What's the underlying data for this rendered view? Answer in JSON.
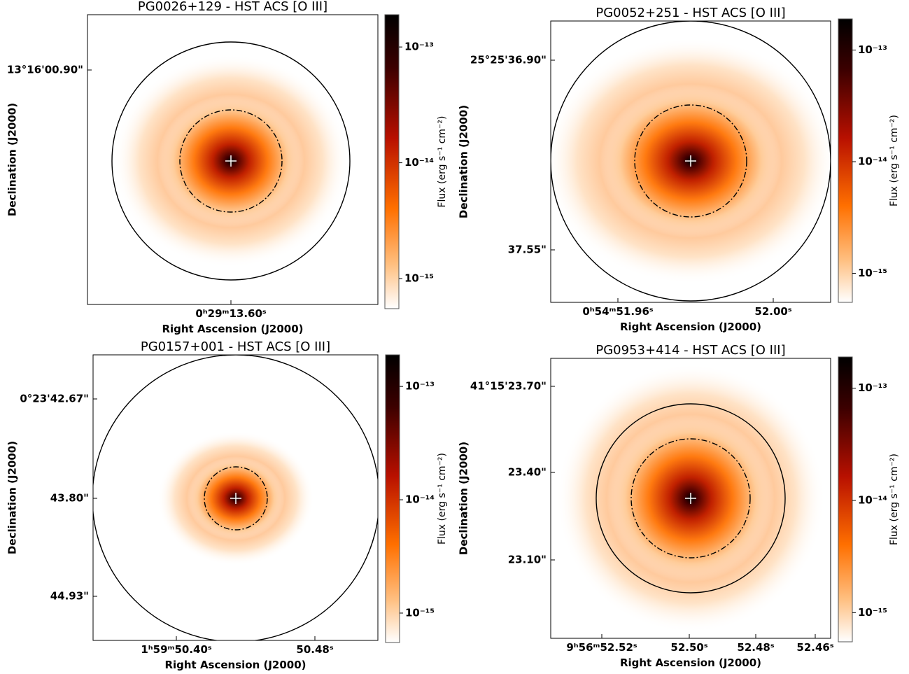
{
  "chart_data": [
    {
      "type": "image",
      "title": "PG0026+129 - HST ACS [O III]",
      "xlabel": "Right Ascension (J2000)",
      "ylabel": "Declination (J2000)",
      "xticks": [
        "0ʰ29ᵐ13.60ˢ"
      ],
      "yticks": [
        "13°16'00.90\""
      ],
      "colorbar": {
        "label": "Flux (erg s⁻¹ cm⁻²)",
        "log": true,
        "lim": [
          5.5e-16,
          1.9e-13
        ],
        "ticks": [
          {
            "value": 1e-13,
            "label": "10⁻¹³"
          },
          {
            "value": 1e-14,
            "label": "10⁻¹⁴"
          },
          {
            "value": 1e-15,
            "label": "10⁻¹⁵"
          }
        ]
      }
    },
    {
      "type": "image",
      "title": "PG0052+251 - HST ACS [O III]",
      "xlabel": "Right Ascension (J2000)",
      "ylabel": "Declination (J2000)",
      "xticks": [
        "0ʰ54ᵐ51.96ˢ",
        "52.00ˢ"
      ],
      "yticks": [
        "25°25'36.90\"",
        "37.55\""
      ],
      "colorbar": {
        "label": "Flux (erg s⁻¹ cm⁻²)",
        "log": true,
        "lim": [
          5.5e-16,
          1.9e-13
        ],
        "ticks": [
          {
            "value": 1e-13,
            "label": "10⁻¹³"
          },
          {
            "value": 1e-14,
            "label": "10⁻¹⁴"
          },
          {
            "value": 1e-15,
            "label": "10⁻¹⁵"
          }
        ]
      }
    },
    {
      "type": "image",
      "title": "PG0157+001 - HST ACS [O III]",
      "xlabel": "Right Ascension (J2000)",
      "ylabel": "Declination (J2000)",
      "xticks": [
        "1ʰ59ᵐ50.40ˢ",
        "50.48ˢ"
      ],
      "yticks": [
        "0°23'42.67\"",
        "43.80\"",
        "44.93\""
      ],
      "colorbar": {
        "label": "Flux (erg s⁻¹ cm⁻²)",
        "log": true,
        "lim": [
          5.5e-16,
          1.9e-13
        ],
        "ticks": [
          {
            "value": 1e-13,
            "label": "10⁻¹³"
          },
          {
            "value": 1e-14,
            "label": "10⁻¹⁴"
          },
          {
            "value": 1e-15,
            "label": "10⁻¹⁵"
          }
        ]
      }
    },
    {
      "type": "image",
      "title": "PG0953+414 - HST ACS [O III]",
      "xlabel": "Right Ascension (J2000)",
      "ylabel": "Declination (J2000)",
      "xticks": [
        "9ʰ56ᵐ52.52ˢ",
        "52.50ˢ",
        "52.48ˢ",
        "52.46ˢ"
      ],
      "yticks": [
        "41°15'23.70\"",
        "23.40\"",
        "23.10\""
      ],
      "colorbar": {
        "label": "Flux (erg s⁻¹ cm⁻²)",
        "log": true,
        "lim": [
          5.5e-16,
          1.9e-13
        ],
        "ticks": [
          {
            "value": 1e-13,
            "label": "10⁻¹³"
          },
          {
            "value": 1e-14,
            "label": "10⁻¹⁴"
          },
          {
            "value": 1e-15,
            "label": "10⁻¹⁵"
          }
        ]
      }
    }
  ]
}
